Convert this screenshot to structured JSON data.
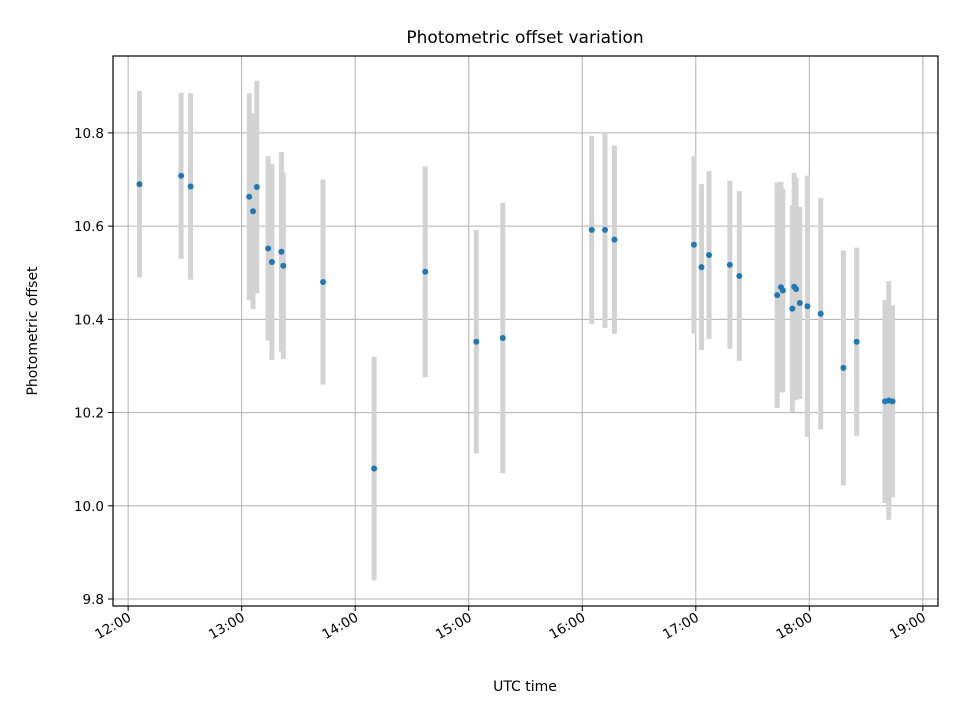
{
  "chart_data": {
    "type": "scatter",
    "title": "Photometric offset variation",
    "xlabel": "UTC time",
    "ylabel": "Photometric offset",
    "x_tick_labels": [
      "12:00",
      "13:00",
      "14:00",
      "15:00",
      "16:00",
      "17:00",
      "18:00",
      "19:00"
    ],
    "y_tick_labels": [
      "9.8",
      "10.0",
      "10.2",
      "10.4",
      "10.6",
      "10.8"
    ],
    "xlim": [
      "11:52",
      "19:08"
    ],
    "ylim": [
      9.785,
      10.965
    ],
    "grid": true,
    "error_bar_color": "#d3d3d3",
    "marker_color": "#1f77b4",
    "points": [
      {
        "x": "12:06",
        "y": 10.69,
        "err": 0.2
      },
      {
        "x": "12:28",
        "y": 10.708,
        "err": 0.178
      },
      {
        "x": "12:33",
        "y": 10.685,
        "err": 0.2
      },
      {
        "x": "13:04",
        "y": 10.663,
        "err": 0.222
      },
      {
        "x": "13:06",
        "y": 10.632,
        "err": 0.21
      },
      {
        "x": "13:08",
        "y": 10.684,
        "err": 0.228
      },
      {
        "x": "13:14",
        "y": 10.552,
        "err": 0.198
      },
      {
        "x": "13:16",
        "y": 10.523,
        "err": 0.21
      },
      {
        "x": "13:21",
        "y": 10.545,
        "err": 0.214
      },
      {
        "x": "13:22",
        "y": 10.515,
        "err": 0.2
      },
      {
        "x": "13:43",
        "y": 10.48,
        "err": 0.22
      },
      {
        "x": "14:10",
        "y": 10.08,
        "err": 0.24
      },
      {
        "x": "14:37",
        "y": 10.502,
        "err": 0.226
      },
      {
        "x": "15:04",
        "y": 10.352,
        "err": 0.24
      },
      {
        "x": "15:18",
        "y": 10.36,
        "err": 0.29
      },
      {
        "x": "16:05",
        "y": 10.592,
        "err": 0.202
      },
      {
        "x": "16:12",
        "y": 10.592,
        "err": 0.21
      },
      {
        "x": "16:17",
        "y": 10.571,
        "err": 0.202
      },
      {
        "x": "16:59",
        "y": 10.56,
        "err": 0.19
      },
      {
        "x": "17:03",
        "y": 10.512,
        "err": 0.178
      },
      {
        "x": "17:07",
        "y": 10.538,
        "err": 0.18
      },
      {
        "x": "17:18",
        "y": 10.517,
        "err": 0.18
      },
      {
        "x": "17:23",
        "y": 10.493,
        "err": 0.182
      },
      {
        "x": "17:43",
        "y": 10.452,
        "err": 0.242
      },
      {
        "x": "17:45",
        "y": 10.469,
        "err": 0.226
      },
      {
        "x": "17:46",
        "y": 10.462,
        "err": 0.218
      },
      {
        "x": "17:51",
        "y": 10.423,
        "err": 0.222
      },
      {
        "x": "17:52",
        "y": 10.47,
        "err": 0.244
      },
      {
        "x": "17:53",
        "y": 10.465,
        "err": 0.238
      },
      {
        "x": "17:55",
        "y": 10.435,
        "err": 0.206
      },
      {
        "x": "17:59",
        "y": 10.428,
        "err": 0.28
      },
      {
        "x": "18:06",
        "y": 10.412,
        "err": 0.248
      },
      {
        "x": "18:18",
        "y": 10.296,
        "err": 0.252
      },
      {
        "x": "18:25",
        "y": 10.352,
        "err": 0.202
      },
      {
        "x": "18:40",
        "y": 10.224,
        "err": 0.218
      },
      {
        "x": "18:42",
        "y": 10.226,
        "err": 0.256
      },
      {
        "x": "18:44",
        "y": 10.224,
        "err": 0.206
      }
    ]
  }
}
